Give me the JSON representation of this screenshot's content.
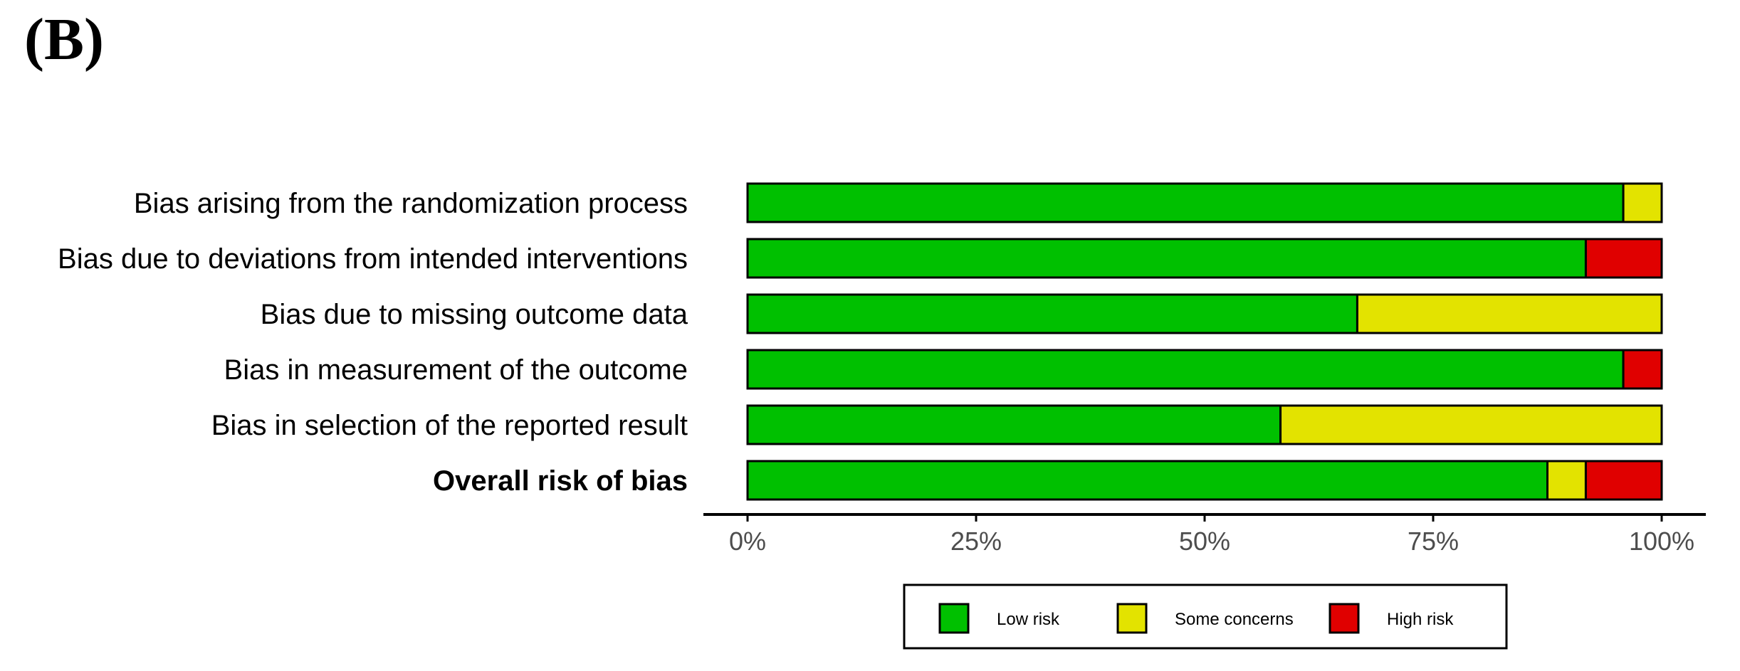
{
  "panel_label": "(B)",
  "colors": {
    "low_risk": "#00c000",
    "some_concerns": "#e3e300",
    "high_risk": "#e00000"
  },
  "chart_data": {
    "type": "bar",
    "orientation": "horizontal",
    "stacked": true,
    "title": "",
    "xlabel": "",
    "ylabel": "",
    "categories": [
      "Bias arising from the randomization process",
      "Bias due to deviations from intended interventions",
      "Bias due to missing outcome data",
      "Bias in measurement of the outcome",
      "Bias in selection of the reported result",
      "Overall risk of bias"
    ],
    "bold_categories": [
      "Overall risk of bias"
    ],
    "series": [
      {
        "name": "Low risk",
        "color": "#00c000",
        "values": [
          95.8,
          91.7,
          66.7,
          95.8,
          58.3,
          87.5
        ]
      },
      {
        "name": "Some concerns",
        "color": "#e3e300",
        "values": [
          4.2,
          0,
          33.3,
          0,
          41.7,
          4.2
        ]
      },
      {
        "name": "High risk",
        "color": "#e00000",
        "values": [
          0,
          8.3,
          0,
          4.2,
          0,
          8.3
        ]
      }
    ],
    "xlim": [
      0,
      100
    ],
    "x_ticks": [
      0,
      25,
      50,
      75,
      100
    ],
    "x_tick_labels": [
      "0%",
      "25%",
      "50%",
      "75%",
      "100%"
    ],
    "grid": false,
    "legend_position": "bottom"
  }
}
